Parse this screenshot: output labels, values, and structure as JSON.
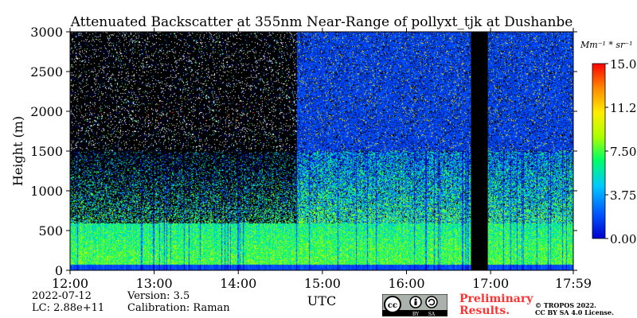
{
  "chart_data": {
    "type": "heatmap",
    "title": "Attenuated Backscatter at 355nm Near-Range of pollyxt_tjk at Dushanbe",
    "xlabel": "UTC",
    "ylabel": "Height (m)",
    "x_range": [
      "12:00",
      "17:59"
    ],
    "x_ticks": [
      "12:00",
      "13:00",
      "14:00",
      "15:00",
      "16:00",
      "17:00",
      "17:59"
    ],
    "y_range": [
      0,
      3000
    ],
    "y_ticks": [
      "0",
      "500",
      "1000",
      "1500",
      "2000",
      "2500",
      "3000"
    ],
    "colorbar": {
      "unit": "Mm⁻¹ * sr⁻¹",
      "range": [
        0,
        15.0
      ],
      "ticks": [
        "0.00",
        "3.75",
        "7.50",
        "11.25",
        "15.00"
      ],
      "colors": [
        "#0000cc",
        "#0055ff",
        "#00c8ff",
        "#00ff66",
        "#aaff00",
        "#ffee00",
        "#ff8800",
        "#ff0000"
      ]
    },
    "no_data_gaps": [
      {
        "start": "16:46",
        "end": "16:58"
      }
    ],
    "background": "#000000"
  },
  "footer": {
    "date": "2022-07-12",
    "lc": "LC: 2.88e+11",
    "version": "Version: 3.5",
    "calibration": "Calibration: Raman",
    "preliminary_line1": "Preliminary",
    "preliminary_line2": "Results.",
    "copyright_line1": "© TROPOS 2022.",
    "copyright_line2": "CC BY SA 4.0 License.",
    "cc_text": "cc",
    "cc_by": "BY",
    "cc_sa": "SA"
  }
}
